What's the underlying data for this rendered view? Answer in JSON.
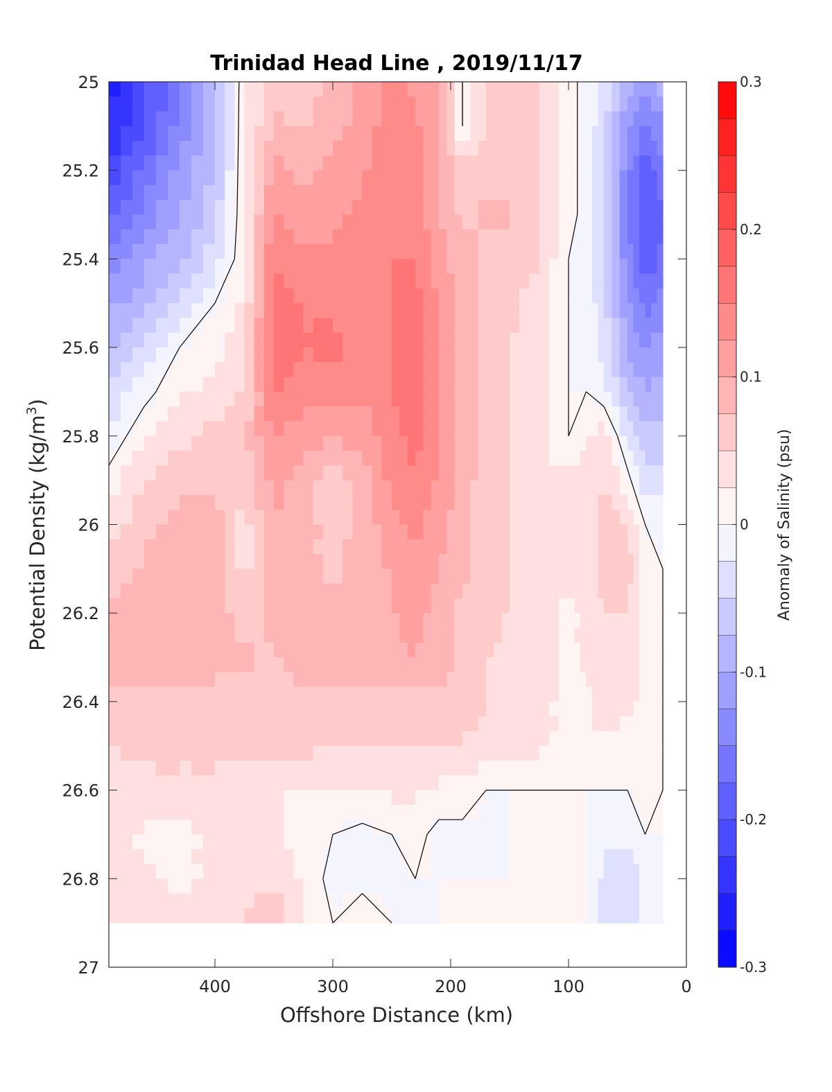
{
  "chart_data": {
    "type": "heatmap",
    "subtype": "filled-contour",
    "title": "Trinidad Head Line , 2019/11/17",
    "xlabel": "Offshore Distance (km)",
    "ylabel": "Potential Density (kg/m",
    "ylabel_sup": "3",
    "ylabel_close": ")",
    "xlim": [
      490,
      0
    ],
    "x_reversed": true,
    "ylim": [
      25,
      27
    ],
    "y_reversed": true,
    "x_ticks": [
      400,
      300,
      200,
      100,
      0
    ],
    "y_ticks": [
      25,
      25.2,
      25.4,
      25.6,
      25.8,
      26,
      26.2,
      26.4,
      26.6,
      26.8,
      27
    ],
    "x_tick_labels": [
      "400",
      "300",
      "200",
      "100",
      "0"
    ],
    "y_tick_labels": [
      "25",
      "25.2",
      "25.4",
      "25.6",
      "25.8",
      "26",
      "26.2",
      "26.4",
      "26.6",
      "26.8",
      "27"
    ],
    "colorbar": {
      "label": "Anomaly of Salinity (psu)",
      "range": [
        -0.3,
        0.3
      ],
      "ticks": [
        0.3,
        0.2,
        0.1,
        0,
        -0.1,
        -0.2,
        -0.3
      ],
      "tick_labels": [
        "0.3",
        "0.2",
        "0.1",
        "0",
        "-0.1",
        "-0.2",
        "-0.3"
      ],
      "level_step": 0.025,
      "colormap": "blue-white-red",
      "color_min": "#0000ff",
      "color_zero": "#ffffff",
      "color_max": "#ff0000"
    },
    "data_x_extent": [
      490,
      20
    ],
    "data_y_extent": [
      25,
      26.9
    ],
    "zero_contour_color": "#000000",
    "field": {
      "x": [
        490,
        460,
        430,
        400,
        375,
        350,
        325,
        300,
        275,
        250,
        230,
        210,
        190,
        170,
        150,
        125,
        100,
        85,
        70,
        50,
        35,
        20
      ],
      "y": [
        25.0,
        25.1,
        25.2,
        25.3,
        25.4,
        25.5,
        25.6,
        25.7,
        25.8,
        25.9,
        26.0,
        26.1,
        26.2,
        26.3,
        26.4,
        26.5,
        26.6,
        26.7,
        26.8,
        26.9
      ],
      "values": [
        [
          -0.26,
          -0.21,
          -0.15,
          -0.09,
          0.02,
          0.06,
          0.06,
          0.08,
          0.11,
          0.13,
          0.12,
          0.1,
          0.0,
          0.05,
          0.06,
          0.05,
          0.01,
          -0.01,
          -0.03,
          -0.09,
          -0.11,
          -0.09
        ],
        [
          -0.25,
          -0.2,
          -0.14,
          -0.08,
          0.02,
          0.08,
          0.07,
          0.09,
          0.11,
          0.14,
          0.13,
          0.1,
          0.0,
          0.05,
          0.07,
          0.05,
          0.01,
          -0.01,
          -0.04,
          -0.12,
          -0.15,
          -0.13
        ],
        [
          -0.22,
          -0.17,
          -0.12,
          -0.07,
          0.02,
          0.11,
          0.09,
          0.11,
          0.12,
          0.14,
          0.14,
          0.1,
          0.06,
          0.06,
          0.07,
          0.05,
          0.01,
          -0.01,
          -0.05,
          -0.14,
          -0.19,
          -0.16
        ],
        [
          -0.18,
          -0.14,
          -0.1,
          -0.06,
          0.02,
          0.13,
          0.11,
          0.12,
          0.13,
          0.15,
          0.14,
          0.1,
          0.07,
          0.08,
          0.08,
          0.05,
          0.01,
          -0.01,
          -0.05,
          -0.15,
          -0.2,
          -0.18
        ],
        [
          -0.15,
          -0.11,
          -0.08,
          -0.04,
          0.02,
          0.15,
          0.13,
          0.13,
          0.14,
          0.15,
          0.15,
          0.11,
          0.08,
          0.07,
          0.07,
          0.05,
          0.0,
          -0.01,
          -0.05,
          -0.14,
          -0.19,
          -0.17
        ],
        [
          -0.11,
          -0.08,
          -0.04,
          0.0,
          0.03,
          0.16,
          0.15,
          0.14,
          0.14,
          0.15,
          0.16,
          0.12,
          0.09,
          0.07,
          0.06,
          0.03,
          0.0,
          -0.01,
          -0.04,
          -0.12,
          -0.16,
          -0.14
        ],
        [
          -0.08,
          -0.04,
          0.0,
          0.02,
          0.04,
          0.17,
          0.15,
          0.16,
          0.14,
          0.15,
          0.17,
          0.12,
          0.09,
          0.07,
          0.05,
          0.03,
          0.0,
          -0.01,
          -0.03,
          -0.1,
          -0.13,
          -0.11
        ],
        [
          -0.05,
          -0.01,
          0.02,
          0.03,
          0.05,
          0.15,
          0.14,
          0.13,
          0.13,
          0.15,
          0.17,
          0.13,
          0.09,
          0.07,
          0.05,
          0.03,
          0.0,
          0.0,
          -0.02,
          -0.07,
          -0.1,
          -0.09
        ],
        [
          -0.02,
          0.02,
          0.04,
          0.06,
          0.07,
          0.13,
          0.11,
          0.1,
          0.11,
          0.14,
          0.16,
          0.13,
          0.09,
          0.07,
          0.05,
          0.03,
          0.0,
          0.02,
          0.04,
          -0.03,
          -0.07,
          -0.07
        ],
        [
          0.01,
          0.05,
          0.07,
          0.07,
          0.05,
          0.11,
          0.09,
          0.06,
          0.09,
          0.13,
          0.15,
          0.12,
          0.09,
          0.06,
          0.05,
          0.03,
          0.03,
          0.04,
          0.05,
          0.01,
          -0.04,
          -0.04
        ],
        [
          0.03,
          0.07,
          0.08,
          0.09,
          0.04,
          0.1,
          0.09,
          0.06,
          0.08,
          0.12,
          0.13,
          0.11,
          0.08,
          0.06,
          0.05,
          0.04,
          0.03,
          0.04,
          0.06,
          0.05,
          0.0,
          -0.01
        ],
        [
          0.06,
          0.08,
          0.08,
          0.1,
          0.04,
          0.1,
          0.08,
          0.07,
          0.09,
          0.1,
          0.12,
          0.1,
          0.08,
          0.06,
          0.05,
          0.04,
          0.03,
          0.03,
          0.06,
          0.06,
          0.01,
          0.0
        ],
        [
          0.08,
          0.09,
          0.1,
          0.09,
          0.06,
          0.09,
          0.08,
          0.08,
          0.1,
          0.1,
          0.11,
          0.09,
          0.07,
          0.06,
          0.05,
          0.04,
          0.02,
          0.03,
          0.05,
          0.05,
          0.01,
          0.0
        ],
        [
          0.09,
          0.09,
          0.09,
          0.08,
          0.08,
          0.07,
          0.09,
          0.09,
          0.09,
          0.09,
          0.1,
          0.09,
          0.07,
          0.05,
          0.04,
          0.03,
          0.02,
          0.03,
          0.05,
          0.04,
          0.01,
          0.0
        ],
        [
          0.07,
          0.07,
          0.07,
          0.07,
          0.07,
          0.07,
          0.07,
          0.07,
          0.07,
          0.07,
          0.07,
          0.07,
          0.06,
          0.05,
          0.04,
          0.03,
          0.02,
          0.02,
          0.04,
          0.03,
          0.02,
          0.0
        ],
        [
          0.05,
          0.06,
          0.06,
          0.06,
          0.06,
          0.06,
          0.06,
          0.05,
          0.05,
          0.05,
          0.05,
          0.05,
          0.05,
          0.04,
          0.03,
          0.03,
          0.02,
          0.02,
          0.02,
          0.01,
          0.01,
          0.0
        ],
        [
          0.04,
          0.04,
          0.04,
          0.04,
          0.03,
          0.03,
          0.02,
          0.02,
          0.03,
          0.03,
          0.03,
          0.02,
          0.02,
          0.0,
          0.0,
          0.0,
          0.0,
          0.0,
          0.0,
          0.0,
          0.01,
          0.0
        ],
        [
          0.04,
          0.02,
          0.01,
          0.04,
          0.03,
          0.03,
          0.01,
          0.0,
          -0.01,
          0.0,
          0.01,
          -0.01,
          -0.01,
          -0.01,
          0.0,
          0.0,
          0.0,
          0.0,
          -0.02,
          -0.02,
          0.0,
          0.0
        ],
        [
          0.03,
          0.03,
          0.02,
          0.03,
          0.04,
          0.05,
          0.02,
          -0.01,
          -0.01,
          -0.01,
          0.0,
          0.0,
          0.0,
          0.0,
          0.0,
          0.0,
          0.0,
          0.0,
          -0.03,
          -0.04,
          -0.02,
          0.0
        ],
        [
          0.03,
          0.03,
          0.03,
          0.03,
          0.05,
          0.06,
          0.03,
          0.0,
          0.02,
          0.0,
          -0.01,
          0.0,
          0.0,
          0.0,
          0.0,
          0.0,
          0.0,
          0.0,
          -0.03,
          -0.03,
          -0.02,
          0.0
        ]
      ]
    }
  }
}
